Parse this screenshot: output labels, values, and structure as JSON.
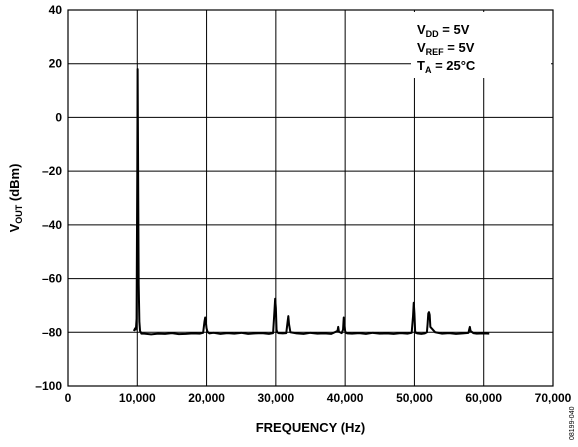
{
  "chart_data": {
    "type": "line",
    "title": "",
    "xlabel": "FREQUENCY (Hz)",
    "ylabel": {
      "main": "V",
      "sub": "OUT",
      "tail": " (dBm)"
    },
    "xlim": [
      0,
      70000
    ],
    "ylim": [
      -100,
      40
    ],
    "x_ticks": [
      0,
      10000,
      20000,
      30000,
      40000,
      50000,
      60000,
      70000
    ],
    "x_tick_labels": [
      "0",
      "10,000",
      "20,000",
      "30,000",
      "40,000",
      "50,000",
      "60,000",
      "70,000"
    ],
    "y_ticks": [
      -100,
      -80,
      -60,
      -40,
      -20,
      0,
      20,
      40
    ],
    "y_tick_labels": [
      "–100",
      "–80",
      "–60",
      "–40",
      "–20",
      "0",
      "20",
      "40"
    ],
    "grid": true,
    "annotations": [
      {
        "main": "V",
        "sub": "DD",
        "tail": " = 5V"
      },
      {
        "main": "V",
        "sub": "REF",
        "tail": " = 5V"
      },
      {
        "main": "T",
        "sub": "A",
        "tail": " = 25°C"
      }
    ],
    "figure_id": "08199-040",
    "series": [
      {
        "color": "#000000",
        "x": [
          9500,
          9700,
          9800,
          9900,
          10000,
          10050,
          10100,
          10200,
          10300,
          10400,
          10600,
          11000,
          12000,
          13000,
          14000,
          15000,
          16000,
          17000,
          18000,
          19000,
          19500,
          19700,
          19800,
          19900,
          20000,
          20100,
          20200,
          20400,
          21000,
          22000,
          23000,
          24000,
          25000,
          26000,
          27000,
          28000,
          29000,
          29600,
          29800,
          29900,
          30000,
          30100,
          30200,
          30400,
          31000,
          31500,
          31700,
          31800,
          31900,
          32100,
          33000,
          34000,
          35000,
          36000,
          37000,
          38000,
          38900,
          39000,
          39100,
          39500,
          39700,
          39800,
          39900,
          40000,
          40100,
          40300,
          41000,
          42000,
          43000,
          44000,
          45000,
          46000,
          47000,
          48000,
          49000,
          49600,
          49800,
          49900,
          50000,
          50100,
          50200,
          50400,
          51000,
          51500,
          51800,
          51900,
          52000,
          52100,
          52200,
          52300,
          53000,
          54000,
          55000,
          56000,
          57000,
          57800,
          57900,
          58000,
          58100,
          58500,
          59000,
          60000,
          60800
        ],
        "y": [
          -79.5,
          -78.5,
          -79,
          -75,
          -20,
          18,
          -10,
          -62,
          -76,
          -79.5,
          -80.5,
          -80.5,
          -80.8,
          -80.5,
          -80.6,
          -80.3,
          -80.7,
          -80.6,
          -80.4,
          -80.5,
          -80.2,
          -76,
          -74.5,
          -76.5,
          -78.5,
          -79.5,
          -80,
          -80.4,
          -80.2,
          -80.6,
          -80.3,
          -80.5,
          -80.2,
          -80.6,
          -80.4,
          -80.3,
          -80.6,
          -80.3,
          -72,
          -67.5,
          -71,
          -79,
          -80,
          -80.3,
          -80.4,
          -80.3,
          -76,
          -74,
          -77,
          -80,
          -80.4,
          -80.6,
          -80.2,
          -80.5,
          -80.4,
          -80.6,
          -79.5,
          -78,
          -79.8,
          -80.3,
          -79,
          -74.5,
          -77.5,
          -79.5,
          -80.2,
          -80.4,
          -80.5,
          -80.3,
          -80.6,
          -80.2,
          -80.5,
          -80.4,
          -80.6,
          -80.3,
          -80.5,
          -80.2,
          -74,
          -69,
          -73,
          -79.5,
          -80.2,
          -80.4,
          -80.6,
          -80.4,
          -80,
          -77,
          -73,
          -72.5,
          -73.5,
          -78,
          -80,
          -80.5,
          -80.3,
          -80.6,
          -80.4,
          -80.2,
          -79,
          -78,
          -79.5,
          -80.3,
          -80.5,
          -80.4,
          -80.5
        ]
      }
    ]
  }
}
